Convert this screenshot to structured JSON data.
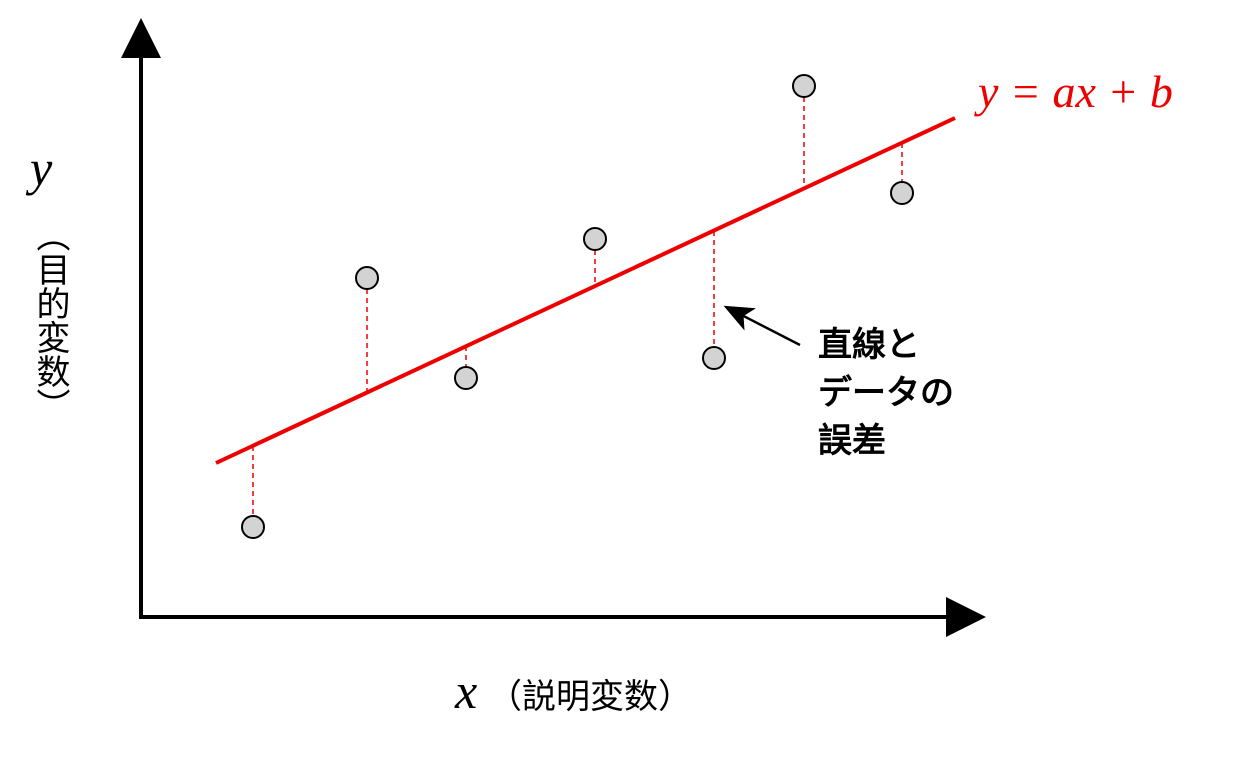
{
  "y_axis": {
    "symbol": "y",
    "name": "（目的変数）"
  },
  "x_axis": {
    "symbol": "x",
    "name": "（説明変数）"
  },
  "equation": "y = ax + b",
  "annotation": {
    "lines": [
      "直線と",
      "データの",
      "誤差"
    ]
  }
}
